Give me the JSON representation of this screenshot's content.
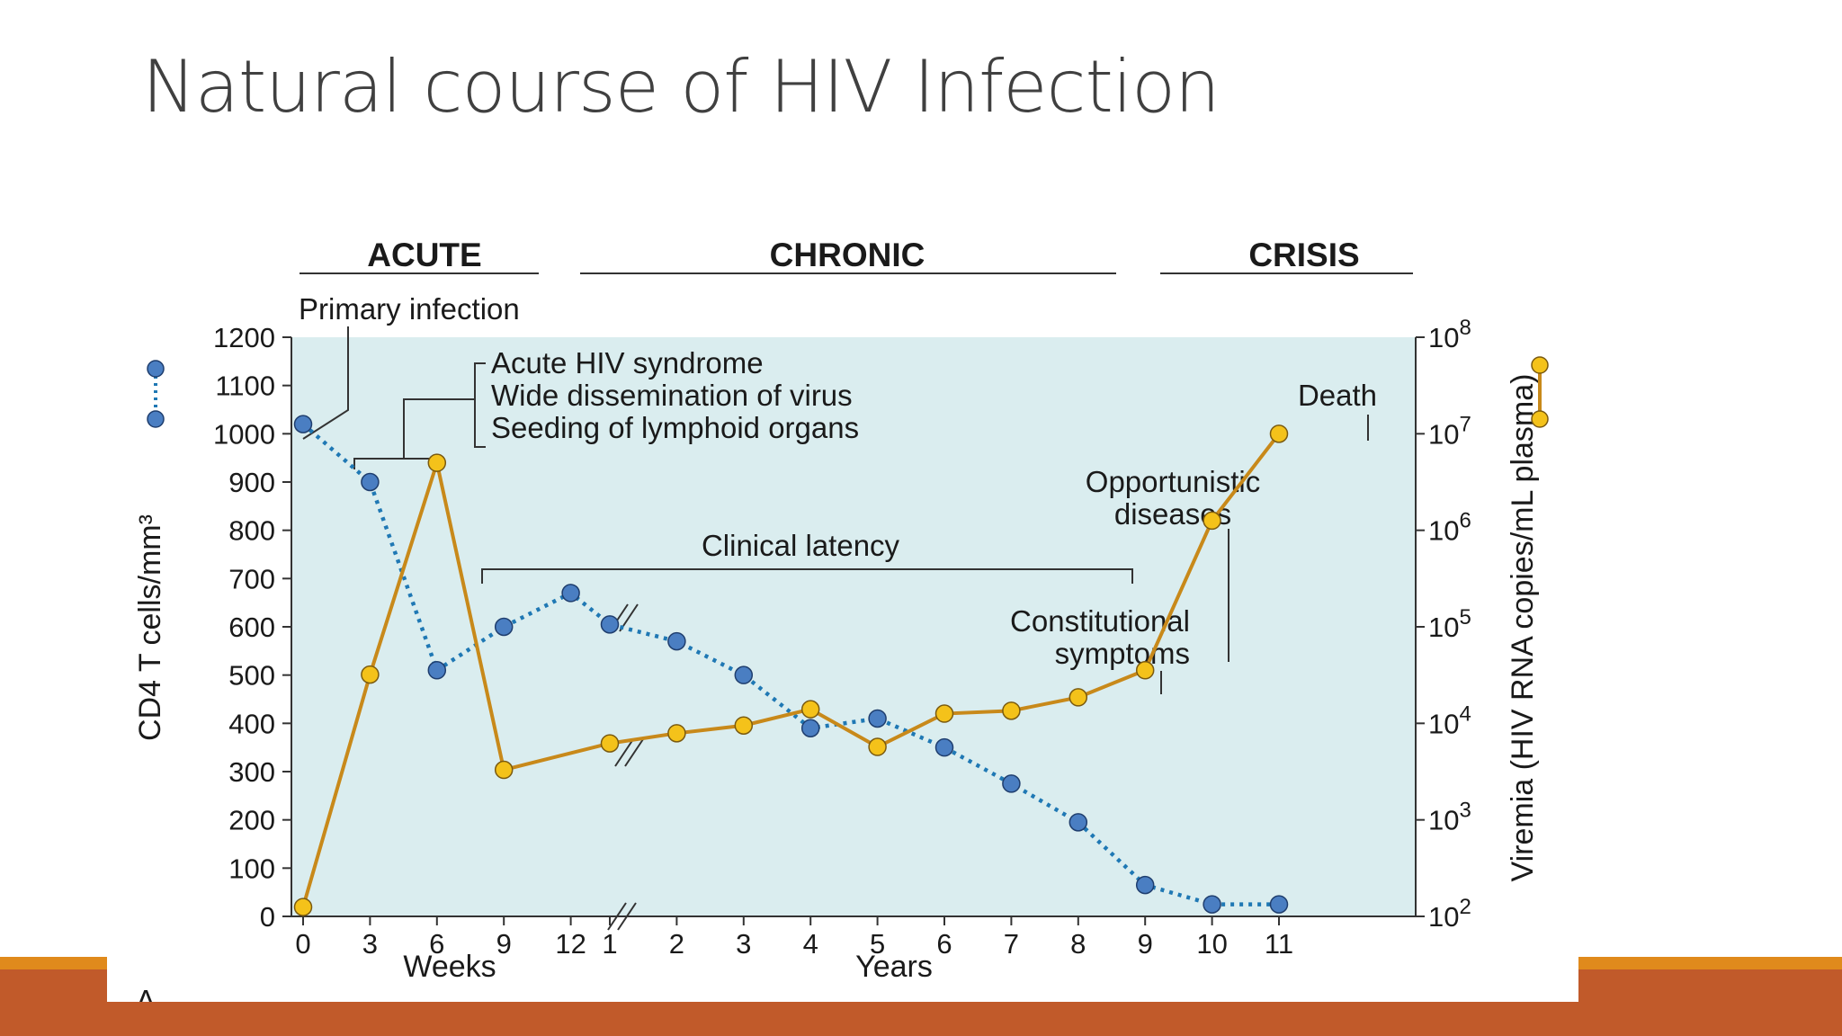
{
  "slide": {
    "title": "Natural course of HIV Infection"
  },
  "colors": {
    "title_text": "#404040",
    "band_top": "#e08a1c",
    "band_bottom": "#c15a2a",
    "plot_bg": "#daedef",
    "cd4_series": "#1f78b4",
    "cd4_marker": "#4a7ec2",
    "viremia_series": "#c8891a",
    "viremia_marker": "#f4c21a"
  },
  "chart_data": {
    "type": "line",
    "phases": [
      "ACUTE",
      "CHRONIC",
      "CRISIS"
    ],
    "annotations": {
      "primary_infection": "Primary infection",
      "acute_lines": [
        "Acute HIV syndrome",
        "Wide dissemination of virus",
        "Seeding of lymphoid organs"
      ],
      "clinical_latency": "Clinical latency",
      "constitutional_lines": [
        "Constitutional",
        "symptoms"
      ],
      "opportunistic_lines": [
        "Opportunistic",
        "diseases"
      ],
      "death": "Death",
      "panel_letter": "A"
    },
    "x_axis": {
      "weeks_ticks": [
        "0",
        "3",
        "6",
        "9",
        "12"
      ],
      "years_ticks": [
        "1",
        "2",
        "3",
        "4",
        "5",
        "6",
        "7",
        "8",
        "9",
        "10",
        "11"
      ],
      "weeks_label": "Weeks",
      "years_label": "Years"
    },
    "y_left": {
      "label": "CD4 T cells/mm³",
      "ticks": [
        "1200",
        "1100",
        "1000",
        "900",
        "800",
        "700",
        "600",
        "500",
        "400",
        "300",
        "200",
        "100",
        "0"
      ],
      "ylim": [
        0,
        1200
      ]
    },
    "y_right": {
      "label": "Viremia (HIV RNA copies/mL plasma)",
      "scale": "log",
      "tick_bases": [
        "10",
        "10",
        "10",
        "10",
        "10",
        "10",
        "10"
      ],
      "tick_exponents": [
        "8",
        "7",
        "6",
        "5",
        "4",
        "3",
        "2"
      ],
      "ylim": [
        100,
        100000000
      ]
    },
    "series": [
      {
        "axis": "left",
        "x": [
          "0 wk",
          "3 wk",
          "6 wk",
          "9 wk",
          "12 wk",
          "1 yr",
          "2 yr",
          "3 yr",
          "4 yr",
          "5 yr",
          "6 yr",
          "7 yr",
          "8 yr",
          "9 yr",
          "10 yr",
          "11 yr"
        ],
        "values": [
          1020,
          900,
          510,
          600,
          670,
          605,
          570,
          500,
          390,
          410,
          350,
          275,
          195,
          65,
          25,
          25
        ]
      },
      {
        "axis": "right",
        "x": [
          "0 wk",
          "3 wk",
          "6 wk",
          "9 wk",
          "1 yr",
          "2 yr",
          "3 yr",
          "4 yr",
          "5 yr",
          "6 yr",
          "7 yr",
          "8 yr",
          "9 yr",
          "10 yr",
          "11 yr"
        ],
        "values": [
          125,
          32000,
          5000000,
          3300,
          6200,
          7900,
          9500,
          14000,
          5700,
          12600,
          13500,
          18600,
          35500,
          1260000,
          10000000
        ]
      }
    ]
  }
}
